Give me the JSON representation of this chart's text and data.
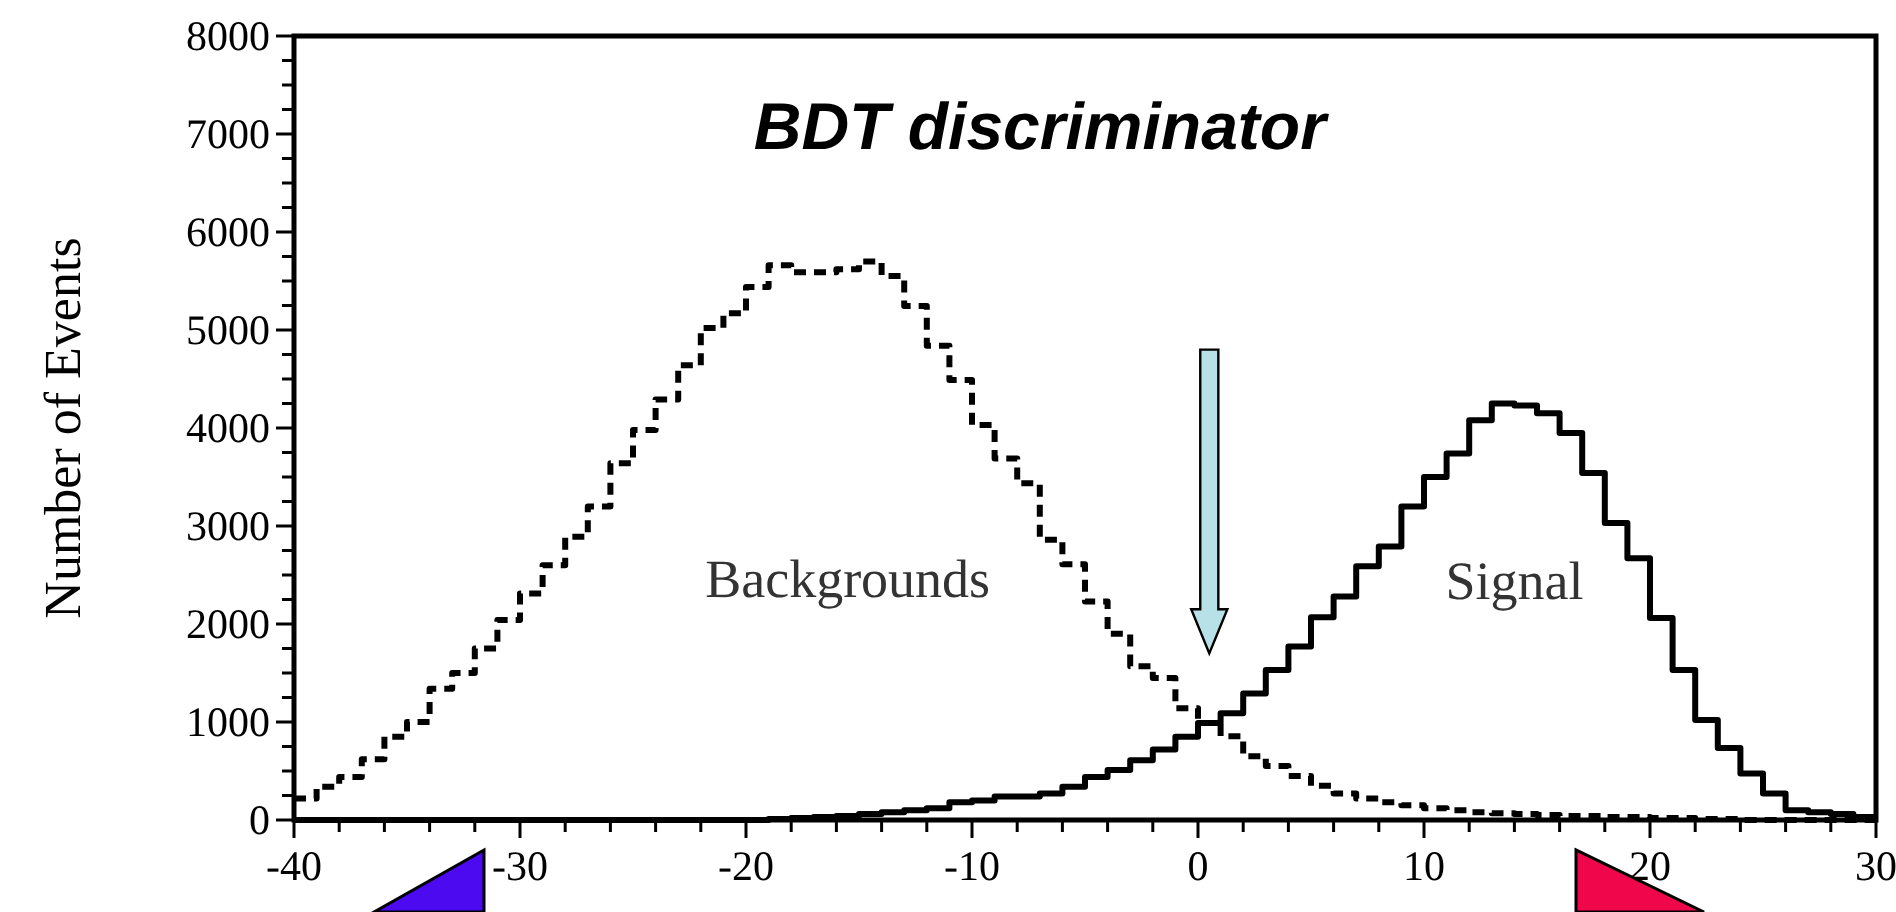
{
  "chart_data": {
    "type": "histogram",
    "title": "BDT discriminator",
    "ylabel": "Number of Events",
    "bins": [
      -40,
      -39,
      -38,
      -37,
      -36,
      -35,
      -34,
      -33,
      -32,
      -31,
      -30,
      -29,
      -28,
      -27,
      -26,
      -25,
      -24,
      -23,
      -22,
      -21,
      -20,
      -19,
      -18,
      -17,
      -16,
      -15,
      -14,
      -13,
      -12,
      -11,
      -10,
      -9,
      -8,
      -7,
      -6,
      -5,
      -4,
      -3,
      -2,
      -1,
      0,
      1,
      2,
      3,
      4,
      5,
      6,
      7,
      8,
      9,
      10,
      11,
      12,
      13,
      14,
      15,
      16,
      17,
      18,
      19,
      20,
      21,
      22,
      23,
      24,
      25,
      26,
      27,
      28,
      29,
      30
    ],
    "series": [
      {
        "name": "Backgrounds",
        "color": "#000000",
        "line_style": "dashed",
        "values": [
          220,
          340,
          440,
          620,
          850,
          1000,
          1340,
          1500,
          1750,
          2040,
          2310,
          2600,
          2890,
          3200,
          3640,
          3980,
          4290,
          4640,
          5020,
          5170,
          5440,
          5660,
          5590,
          5590,
          5620,
          5700,
          5550,
          5245,
          4840,
          4490,
          4030,
          3690,
          3435,
          2860,
          2610,
          2230,
          1900,
          1570,
          1450,
          1140,
          990,
          855,
          650,
          550,
          450,
          350,
          270,
          220,
          180,
          150,
          120,
          100,
          80,
          70,
          60,
          50,
          40,
          40,
          30,
          30,
          20,
          20,
          10,
          10,
          0,
          0,
          0,
          0,
          0,
          0
        ]
      },
      {
        "name": "Signal",
        "color": "#000000",
        "line_style": "solid",
        "values": [
          0,
          0,
          0,
          0,
          0,
          0,
          0,
          0,
          0,
          0,
          0,
          0,
          0,
          0,
          0,
          0,
          0,
          0,
          0,
          0,
          0,
          10,
          20,
          30,
          40,
          60,
          80,
          100,
          120,
          180,
          200,
          240,
          240,
          270,
          340,
          440,
          510,
          610,
          720,
          850,
          990,
          1090,
          1290,
          1530,
          1770,
          2070,
          2280,
          2590,
          2790,
          3200,
          3500,
          3740,
          4080,
          4250,
          4230,
          4150,
          3950,
          3540,
          3030,
          2670,
          2060,
          1530,
          1020,
          735,
          475,
          270,
          100,
          80,
          60,
          30
        ]
      }
    ],
    "xlim": [
      -40,
      30
    ],
    "xticks": [
      -40,
      {
        "value": -38,
        "label": null
      },
      {
        "value": -36,
        "label": null
      },
      {
        "value": -34,
        "label": null
      },
      {
        "value": -32,
        "label": null
      },
      -30,
      {
        "value": -28,
        "label": null
      },
      {
        "value": -26,
        "label": null
      },
      {
        "value": -24,
        "label": null
      },
      {
        "value": -22,
        "label": null
      },
      -20,
      {
        "value": -18,
        "label": null
      },
      {
        "value": -16,
        "label": null
      },
      {
        "value": -14,
        "label": null
      },
      {
        "value": -12,
        "label": null
      },
      -10,
      {
        "value": -8,
        "label": null
      },
      {
        "value": -6,
        "label": null
      },
      {
        "value": -4,
        "label": null
      },
      {
        "value": -2,
        "label": null
      },
      0,
      {
        "value": 2,
        "label": null
      },
      {
        "value": 4,
        "label": null
      },
      {
        "value": 6,
        "label": null
      },
      {
        "value": 8,
        "label": null
      },
      10,
      {
        "value": 12,
        "label": null
      },
      {
        "value": 14,
        "label": null
      },
      {
        "value": 16,
        "label": null
      },
      {
        "value": 18,
        "label": null
      },
      20,
      {
        "value": 22,
        "label": null
      },
      {
        "value": 24,
        "label": null
      },
      {
        "value": 26,
        "label": null
      },
      {
        "value": 28,
        "label": null
      },
      30
    ],
    "ylim": [
      0,
      8000
    ],
    "yticks": [
      0,
      {
        "value": 250,
        "label": null
      },
      {
        "value": 500,
        "label": null
      },
      {
        "value": 750,
        "label": null
      },
      1000,
      {
        "value": 1250,
        "label": null
      },
      {
        "value": 1500,
        "label": null
      },
      {
        "value": 1750,
        "label": null
      },
      2000,
      {
        "value": 2250,
        "label": null
      },
      {
        "value": 2500,
        "label": null
      },
      {
        "value": 2750,
        "label": null
      },
      3000,
      {
        "value": 3250,
        "label": null
      },
      {
        "value": 3500,
        "label": null
      },
      {
        "value": 3750,
        "label": null
      },
      4000,
      {
        "value": 4250,
        "label": null
      },
      {
        "value": 4500,
        "label": null
      },
      {
        "value": 4750,
        "label": null
      },
      5000,
      {
        "value": 5250,
        "label": null
      },
      {
        "value": 5500,
        "label": null
      },
      {
        "value": 5750,
        "label": null
      },
      6000,
      {
        "value": 6250,
        "label": null
      },
      {
        "value": 6500,
        "label": null
      },
      {
        "value": 6750,
        "label": null
      },
      7000,
      {
        "value": 7250,
        "label": null
      },
      {
        "value": 7500,
        "label": null
      },
      {
        "value": 7750,
        "label": null
      },
      8000
    ],
    "grid": false
  }
}
